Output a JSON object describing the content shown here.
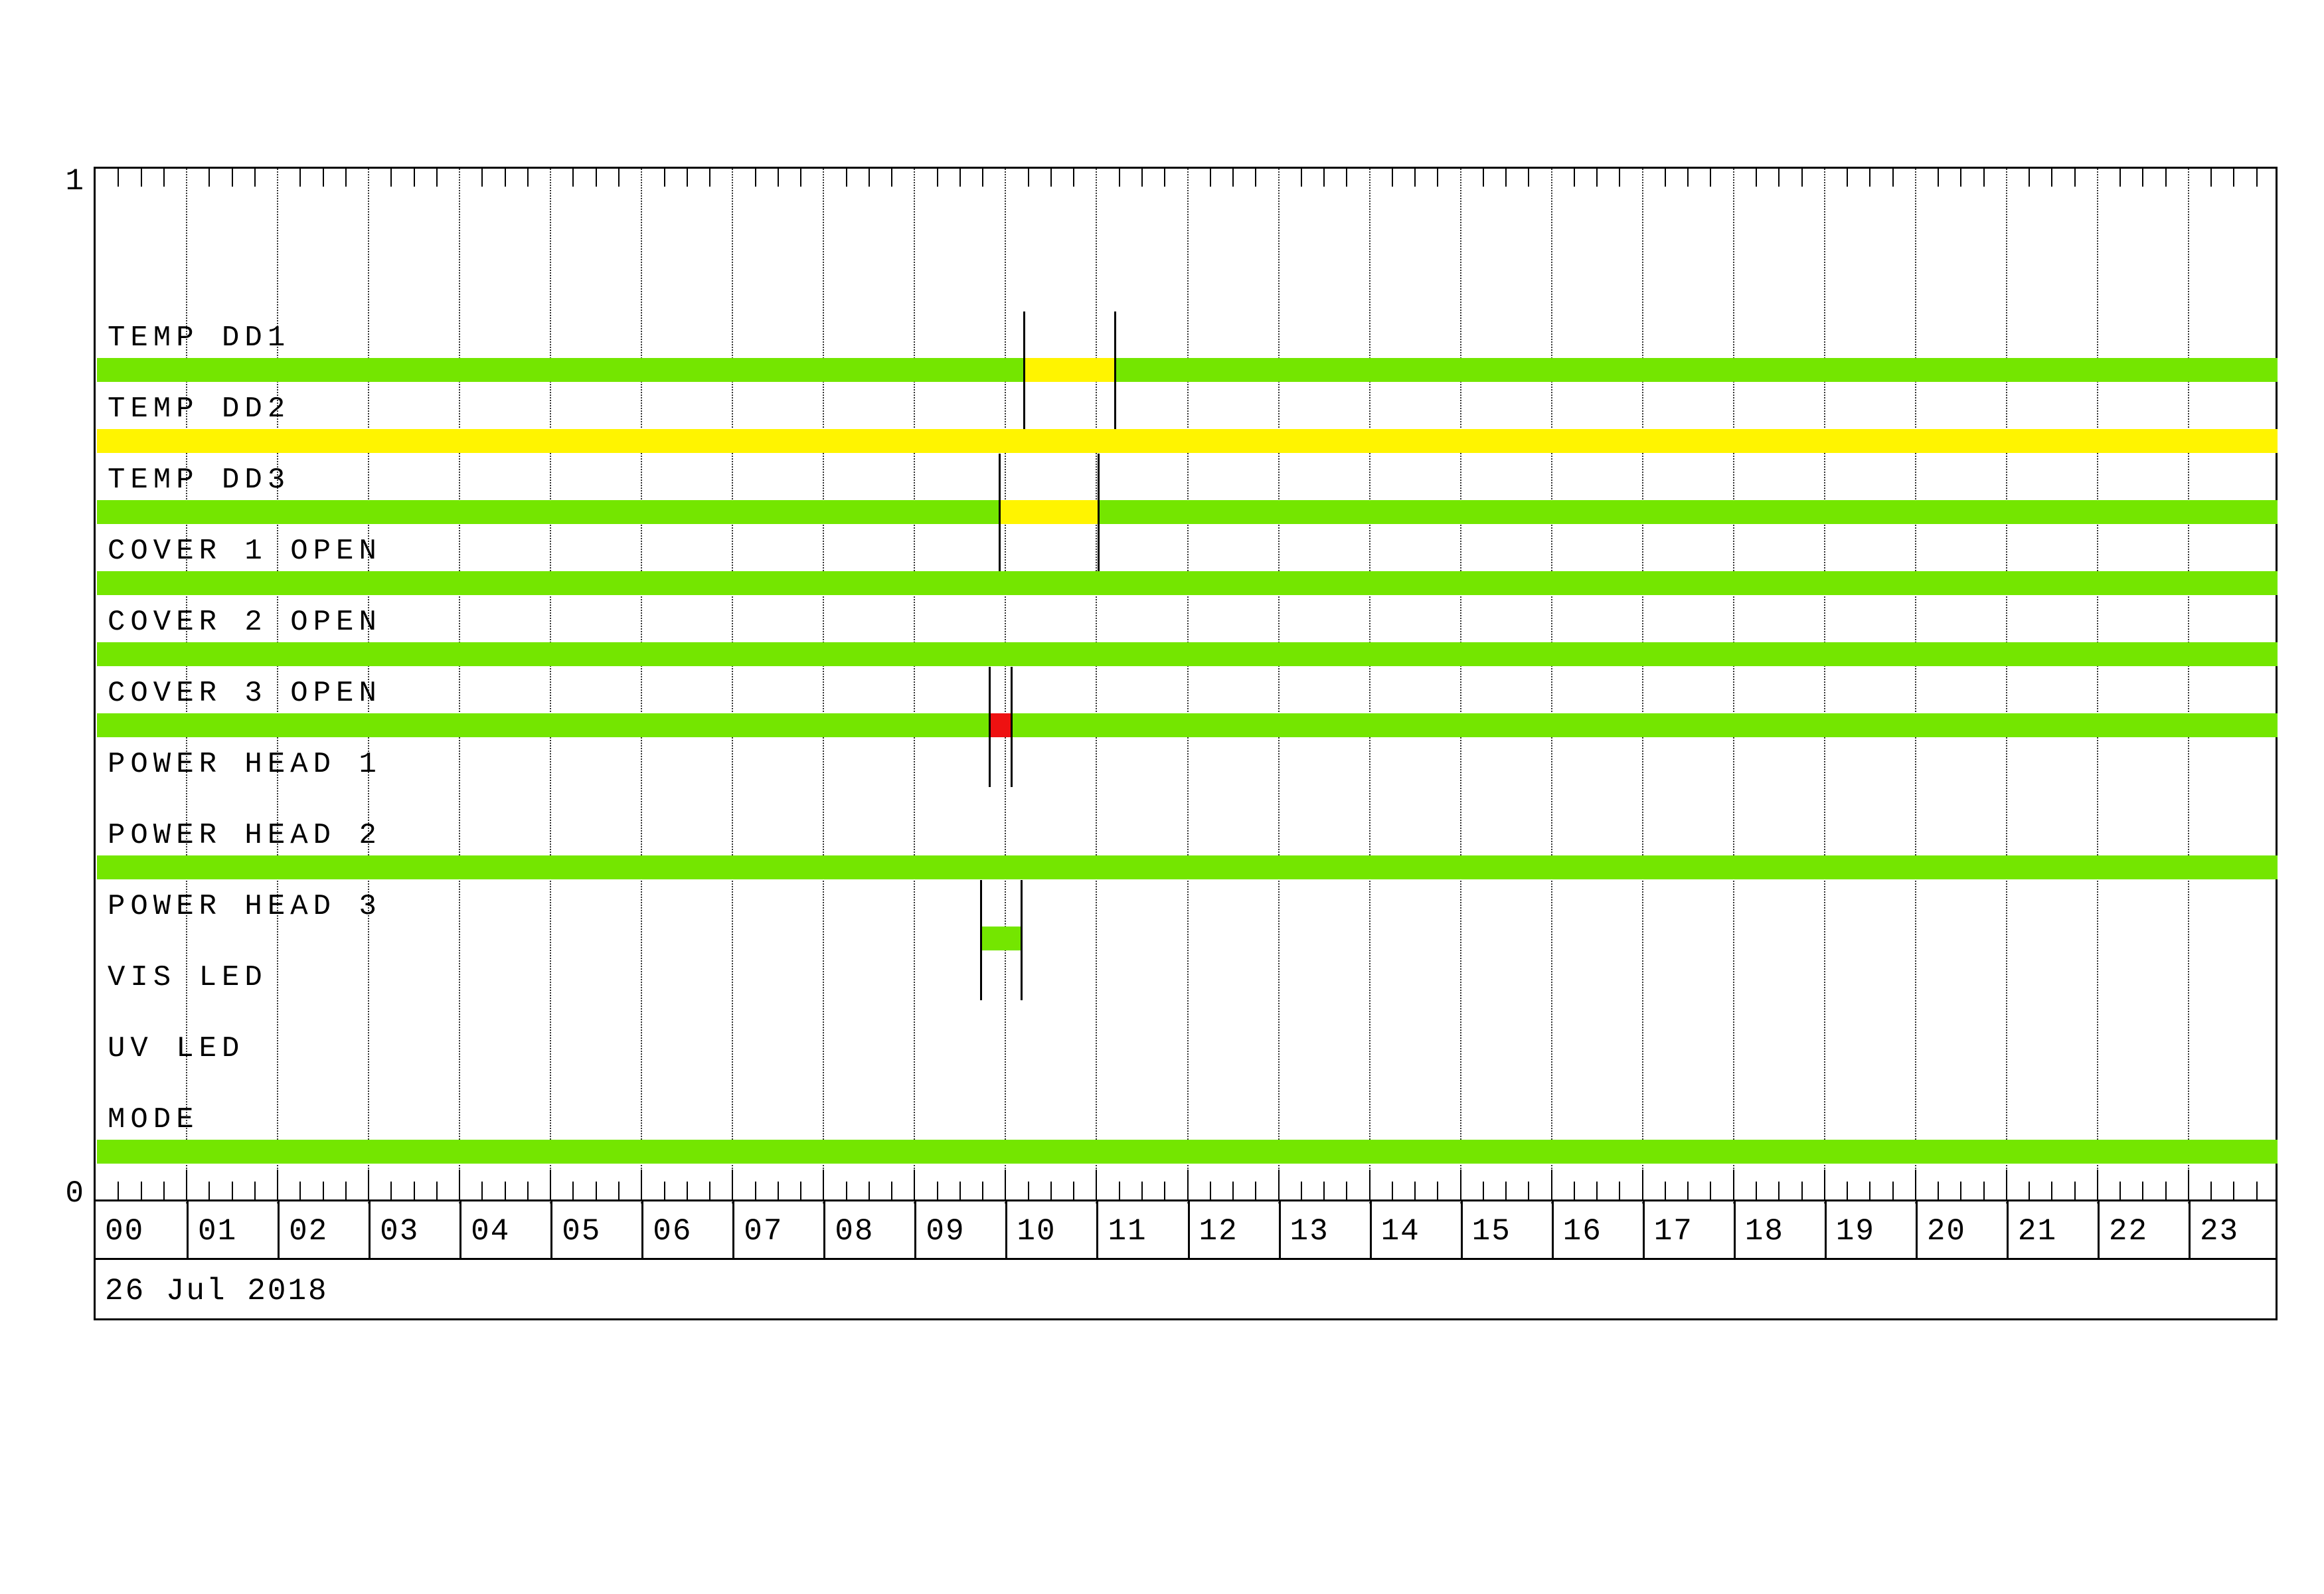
{
  "date_label": "26 Jul 2018",
  "y_axis": {
    "top": "1",
    "bottom": "0"
  },
  "hours": [
    "00",
    "01",
    "02",
    "03",
    "04",
    "05",
    "06",
    "07",
    "08",
    "09",
    "10",
    "11",
    "12",
    "13",
    "14",
    "15",
    "16",
    "17",
    "18",
    "19",
    "20",
    "21",
    "22",
    "23"
  ],
  "status_colors": {
    "green": "#74E600",
    "yellow": "#FFF400",
    "red": "#EE1111"
  },
  "chart_data": {
    "type": "timeline",
    "title": "",
    "x_axis": {
      "unit": "hours",
      "start": 0,
      "end": 24,
      "minor_tick_minutes": 15,
      "hour_gridlines": "dotted",
      "date": "26 Jul 2018"
    },
    "y_axis_ticks": [
      "1",
      "0"
    ],
    "rows": [
      {
        "label": "TEMP DD1",
        "segments": [
          {
            "start": 0,
            "end": 10.2,
            "start_time": "00:00",
            "end_time": "10:12",
            "status": "green"
          },
          {
            "start": 10.2,
            "end": 11.2,
            "start_time": "10:12",
            "end_time": "11:12",
            "status": "yellow"
          },
          {
            "start": 11.2,
            "end": 24,
            "start_time": "11:12",
            "end_time": "24:00",
            "status": "green"
          }
        ],
        "markers": [
          10.2,
          11.2
        ]
      },
      {
        "label": "TEMP DD2",
        "segments": [
          {
            "start": 0,
            "end": 24,
            "start_time": "00:00",
            "end_time": "24:00",
            "status": "yellow"
          }
        ],
        "markers": []
      },
      {
        "label": "TEMP DD3",
        "segments": [
          {
            "start": 0,
            "end": 9.93,
            "start_time": "00:00",
            "end_time": "09:56",
            "status": "green"
          },
          {
            "start": 9.93,
            "end": 11.02,
            "start_time": "09:56",
            "end_time": "11:01",
            "status": "yellow"
          },
          {
            "start": 11.02,
            "end": 24,
            "start_time": "11:01",
            "end_time": "24:00",
            "status": "green"
          }
        ],
        "markers": [
          9.93,
          11.02
        ]
      },
      {
        "label": "COVER 1 OPEN",
        "segments": [
          {
            "start": 0,
            "end": 24,
            "start_time": "00:00",
            "end_time": "24:00",
            "status": "green"
          }
        ],
        "markers": []
      },
      {
        "label": "COVER 2 OPEN",
        "segments": [
          {
            "start": 0,
            "end": 24,
            "start_time": "00:00",
            "end_time": "24:00",
            "status": "green"
          }
        ],
        "markers": []
      },
      {
        "label": "COVER 3 OPEN",
        "segments": [
          {
            "start": 0,
            "end": 9.82,
            "start_time": "00:00",
            "end_time": "09:49",
            "status": "green"
          },
          {
            "start": 9.82,
            "end": 10.06,
            "start_time": "09:49",
            "end_time": "10:04",
            "status": "red"
          },
          {
            "start": 10.06,
            "end": 24,
            "start_time": "10:04",
            "end_time": "24:00",
            "status": "green"
          }
        ],
        "markers": [
          9.82,
          10.06
        ]
      },
      {
        "label": "POWER HEAD 1",
        "segments": [],
        "markers": []
      },
      {
        "label": "POWER HEAD 2",
        "segments": [
          {
            "start": 0,
            "end": 24,
            "start_time": "00:00",
            "end_time": "24:00",
            "status": "green"
          }
        ],
        "markers": []
      },
      {
        "label": "POWER HEAD 3",
        "segments": [
          {
            "start": 9.73,
            "end": 10.17,
            "start_time": "09:44",
            "end_time": "10:10",
            "status": "green"
          }
        ],
        "markers": [
          9.73,
          10.17
        ]
      },
      {
        "label": "VIS LED",
        "segments": [],
        "markers": []
      },
      {
        "label": "UV LED",
        "segments": [],
        "markers": []
      },
      {
        "label": "MODE",
        "segments": [
          {
            "start": 0,
            "end": 24,
            "start_time": "00:00",
            "end_time": "24:00",
            "status": "green"
          }
        ],
        "markers": []
      }
    ]
  }
}
